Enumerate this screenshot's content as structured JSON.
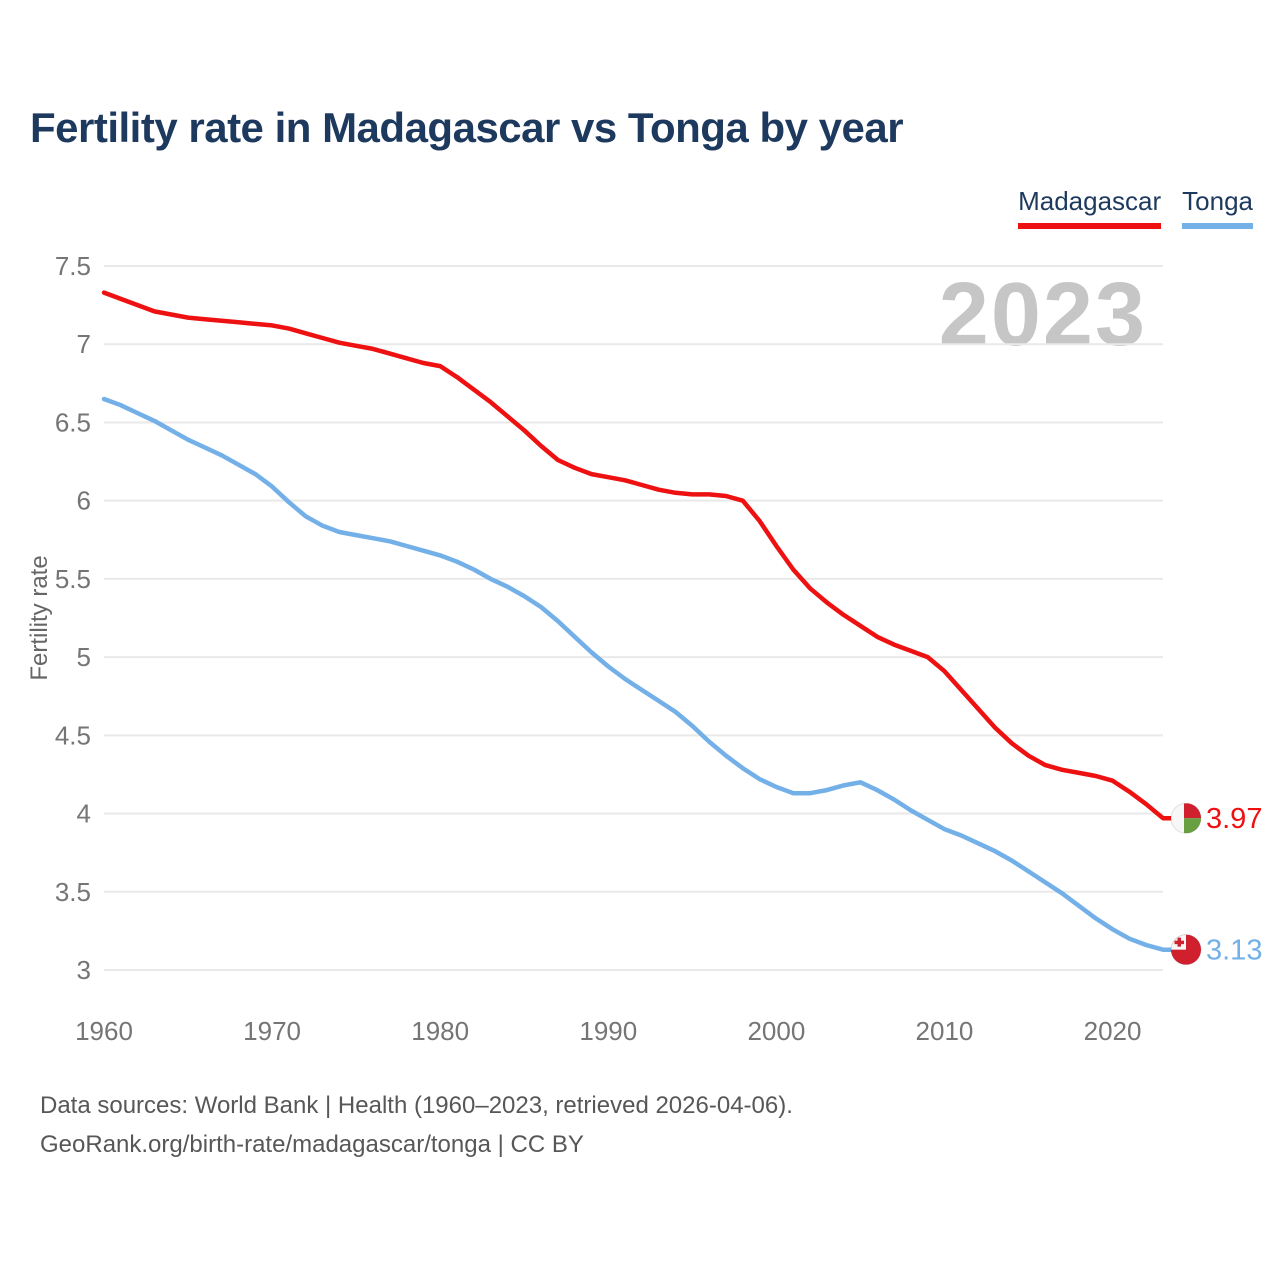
{
  "header": {
    "title": "Fertility rate in Madagascar vs Tonga by year"
  },
  "legend": [
    {
      "label": "Madagascar",
      "color": "#ee1111"
    },
    {
      "label": "Tonga",
      "color": "#74b0e8"
    }
  ],
  "watermark": "2023",
  "footer": {
    "line1": "Data sources: World Bank | Health (1960–2023, retrieved 2026-04-06).",
    "line2": "GeoRank.org/birth-rate/madagascar/tonga | CC BY"
  },
  "chart_data": {
    "type": "line",
    "title": "Fertility rate in Madagascar vs Tonga by year",
    "xlabel": "",
    "ylabel": "Fertility rate",
    "x_ticks": [
      1960,
      1970,
      1980,
      1990,
      2000,
      2010,
      2020
    ],
    "y_ticks": [
      7.5,
      7,
      6.5,
      6,
      5.5,
      5,
      4.5,
      4,
      3.5,
      3
    ],
    "ylim": [
      3,
      7.5
    ],
    "xlim": [
      1960,
      2023
    ],
    "grid": "horizontal",
    "legend_position": "top-right",
    "colors": {
      "grid": "#e9e9e9",
      "tick_text": "#757575",
      "axis_label_text": "#666666",
      "flag_red": "#d0202e",
      "flag_green": "#68a041",
      "flag_white": "#f7f7f7"
    },
    "x": [
      1960,
      1961,
      1962,
      1963,
      1964,
      1965,
      1966,
      1967,
      1968,
      1969,
      1970,
      1971,
      1972,
      1973,
      1974,
      1975,
      1976,
      1977,
      1978,
      1979,
      1980,
      1981,
      1982,
      1983,
      1984,
      1985,
      1986,
      1987,
      1988,
      1989,
      1990,
      1991,
      1992,
      1993,
      1994,
      1995,
      1996,
      1997,
      1998,
      1999,
      2000,
      2001,
      2002,
      2003,
      2004,
      2005,
      2006,
      2007,
      2008,
      2009,
      2010,
      2011,
      2012,
      2013,
      2014,
      2015,
      2016,
      2017,
      2018,
      2019,
      2020,
      2021,
      2022,
      2023
    ],
    "series": [
      {
        "name": "Madagascar",
        "color": "#ee1111",
        "end_label": "3.97",
        "end_flag": "madagascar-flag",
        "values": [
          7.33,
          7.29,
          7.25,
          7.21,
          7.19,
          7.17,
          7.16,
          7.15,
          7.14,
          7.13,
          7.12,
          7.1,
          7.07,
          7.04,
          7.01,
          6.99,
          6.97,
          6.94,
          6.91,
          6.88,
          6.86,
          6.79,
          6.71,
          6.63,
          6.54,
          6.45,
          6.35,
          6.26,
          6.21,
          6.17,
          6.15,
          6.13,
          6.1,
          6.07,
          6.05,
          6.04,
          6.04,
          6.03,
          6.0,
          5.87,
          5.71,
          5.56,
          5.44,
          5.35,
          5.27,
          5.2,
          5.13,
          5.08,
          5.04,
          5.0,
          4.91,
          4.79,
          4.67,
          4.55,
          4.45,
          4.37,
          4.31,
          4.28,
          4.26,
          4.24,
          4.21,
          4.14,
          4.06,
          3.97
        ]
      },
      {
        "name": "Tonga",
        "color": "#74b0e8",
        "end_label": "3.13",
        "end_flag": "tonga-flag",
        "values": [
          6.65,
          6.61,
          6.56,
          6.51,
          6.45,
          6.39,
          6.34,
          6.29,
          6.23,
          6.17,
          6.09,
          5.99,
          5.9,
          5.84,
          5.8,
          5.78,
          5.76,
          5.74,
          5.71,
          5.68,
          5.65,
          5.61,
          5.56,
          5.5,
          5.45,
          5.39,
          5.32,
          5.23,
          5.13,
          5.03,
          4.94,
          4.86,
          4.79,
          4.72,
          4.65,
          4.56,
          4.46,
          4.37,
          4.29,
          4.22,
          4.17,
          4.13,
          4.13,
          4.15,
          4.18,
          4.2,
          4.15,
          4.09,
          4.02,
          3.96,
          3.9,
          3.86,
          3.81,
          3.76,
          3.7,
          3.63,
          3.56,
          3.49,
          3.41,
          3.33,
          3.26,
          3.2,
          3.16,
          3.13
        ]
      }
    ]
  }
}
